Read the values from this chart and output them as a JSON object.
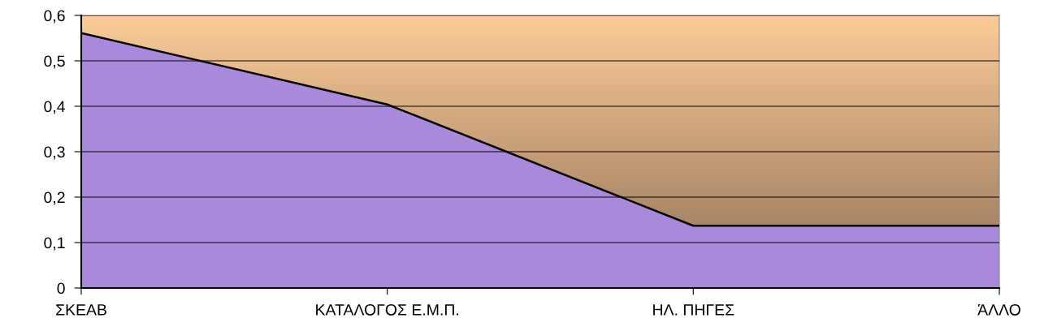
{
  "chart_data": {
    "type": "area",
    "categories": [
      "ΣΚΕΑΒ",
      "ΚΑΤΑΛΟΓΟΣ Ε.Μ.Π.",
      "ΗΛ. ΠΗΓΕΣ",
      "ΆΛΛΟ"
    ],
    "series": [
      {
        "color": "#a889dc",
        "values": [
          0.561,
          0.404,
          0.137,
          0.137
        ]
      }
    ],
    "ylim": [
      0,
      0.6
    ],
    "yticks": [
      {
        "value": 0,
        "label": "0"
      },
      {
        "value": 0.1,
        "label": "0,1"
      },
      {
        "value": 0.2,
        "label": "0,2"
      },
      {
        "value": 0.3,
        "label": "0,3"
      },
      {
        "value": 0.4,
        "label": "0,4"
      },
      {
        "value": 0.5,
        "label": "0,5"
      },
      {
        "value": 0.6,
        "label": "0,6"
      }
    ],
    "grid": "y",
    "legend": false
  }
}
